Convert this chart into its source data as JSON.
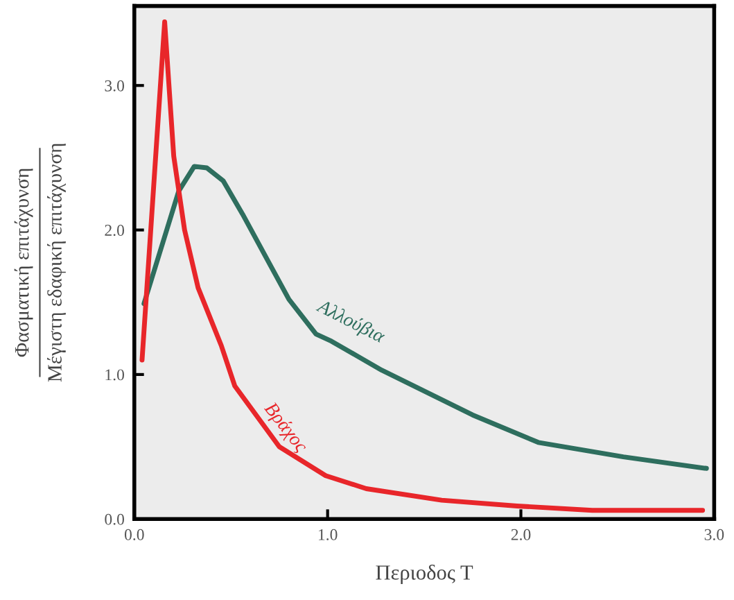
{
  "chart_data": {
    "type": "line",
    "xlabel": "Περιοδος Τ",
    "ylabel": "Φασματική επιτάχυνση\nΜέγιστη εδαφική επιτάχυνση",
    "xlim": [
      0,
      3.0
    ],
    "ylim": [
      0,
      3.55
    ],
    "xticks": [
      {
        "value": 0,
        "label": "0.0"
      },
      {
        "value": 1,
        "label": "1.0"
      },
      {
        "value": 2,
        "label": "2.0"
      },
      {
        "value": 3,
        "label": "3.0"
      }
    ],
    "yticks": [
      {
        "value": 0,
        "label": "0.0"
      },
      {
        "value": 1,
        "label": "1.0"
      },
      {
        "value": 2,
        "label": "2.0"
      },
      {
        "value": 3,
        "label": "3.0"
      }
    ],
    "grid": false,
    "legend": false,
    "marker": "none",
    "line_style": "solid",
    "series": [
      {
        "name": "Αλλούβια",
        "color": "#2e6e5e",
        "x": [
          0.05,
          0.23,
          0.31,
          0.375,
          0.46,
          0.56,
          0.69,
          0.8,
          0.94,
          1.02,
          1.28,
          1.75,
          2.09,
          2.53,
          2.96
        ],
        "values": [
          1.49,
          2.27,
          2.44,
          2.43,
          2.34,
          2.11,
          1.79,
          1.52,
          1.28,
          1.23,
          1.03,
          0.72,
          0.53,
          0.43,
          0.35
        ]
      },
      {
        "name": "Βράχος",
        "color": "#e8262a",
        "x": [
          0.04,
          0.157,
          0.204,
          0.26,
          0.33,
          0.45,
          0.52,
          0.75,
          0.99,
          1.2,
          1.59,
          1.98,
          2.37,
          2.94
        ],
        "values": [
          1.1,
          3.44,
          2.51,
          2.0,
          1.6,
          1.2,
          0.92,
          0.5,
          0.3,
          0.21,
          0.13,
          0.09,
          0.06,
          0.06
        ]
      }
    ]
  }
}
